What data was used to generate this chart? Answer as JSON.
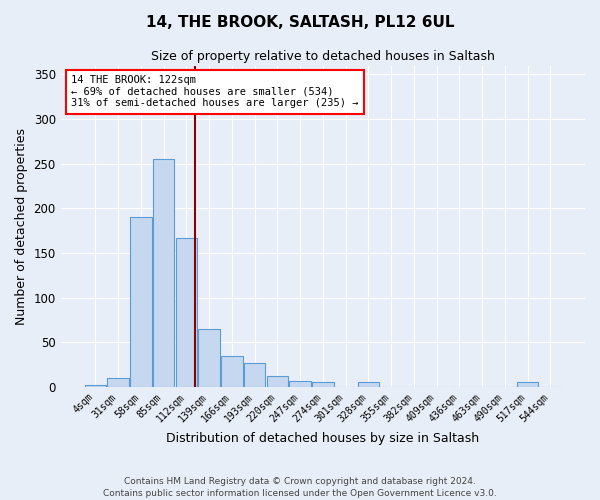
{
  "title1": "14, THE BROOK, SALTASH, PL12 6UL",
  "title2": "Size of property relative to detached houses in Saltash",
  "xlabel": "Distribution of detached houses by size in Saltash",
  "ylabel": "Number of detached properties",
  "categories": [
    "4sqm",
    "31sqm",
    "58sqm",
    "85sqm",
    "112sqm",
    "139sqm",
    "166sqm",
    "193sqm",
    "220sqm",
    "247sqm",
    "274sqm",
    "301sqm",
    "328sqm",
    "355sqm",
    "382sqm",
    "409sqm",
    "436sqm",
    "463sqm",
    "490sqm",
    "517sqm",
    "544sqm"
  ],
  "values": [
    2,
    10,
    190,
    255,
    167,
    65,
    35,
    27,
    12,
    6,
    5,
    0,
    5,
    0,
    0,
    0,
    0,
    0,
    0,
    5,
    0
  ],
  "bar_color": "#c5d8f0",
  "bar_edge_color": "#5b9bd5",
  "vline_color": "#8b0000",
  "bg_color": "#e8eef8",
  "grid_color": "#ffffff",
  "ylim": [
    0,
    360
  ],
  "yticks": [
    0,
    50,
    100,
    150,
    200,
    250,
    300,
    350
  ],
  "prop_bin_idx": 4.37,
  "annotation_label": "14 THE BROOK: 122sqm",
  "annotation_line1": "← 69% of detached houses are smaller (534)",
  "annotation_line2": "31% of semi-detached houses are larger (235) →",
  "footer1": "Contains HM Land Registry data © Crown copyright and database right 2024.",
  "footer2": "Contains public sector information licensed under the Open Government Licence v3.0."
}
